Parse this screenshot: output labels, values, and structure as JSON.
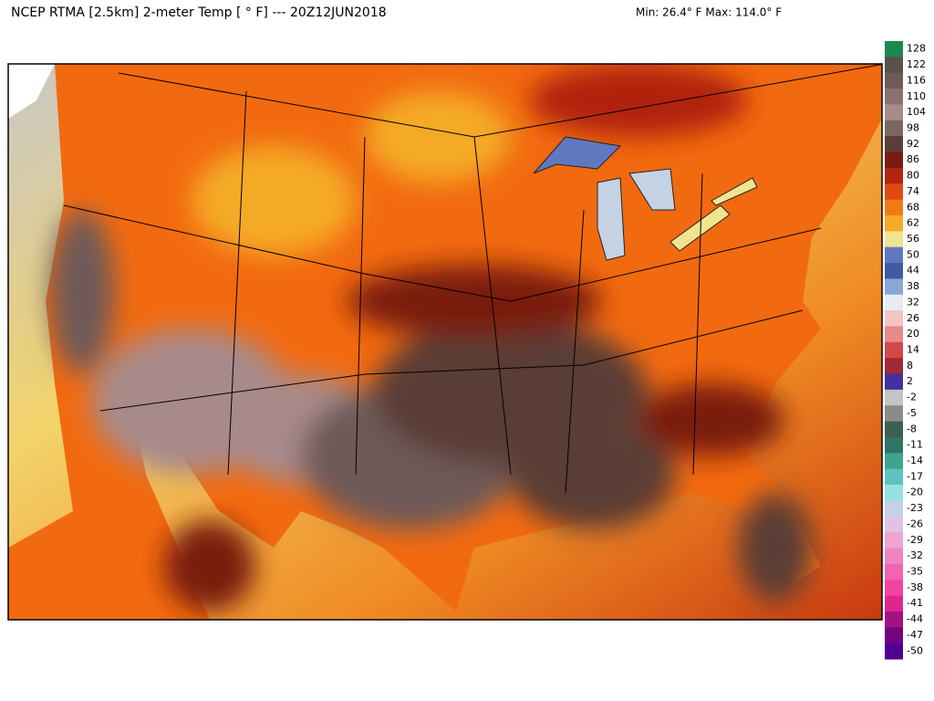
{
  "header": {
    "title": "NCEP RTMA [2.5km] 2-meter Temp [ ° F]  --- 20Z12JUN2018",
    "range": "Min: 26.4° F Max: 114.0° F"
  },
  "colorbar": {
    "labels": [
      128,
      122,
      116,
      110,
      104,
      98,
      92,
      86,
      80,
      74,
      68,
      62,
      56,
      50,
      44,
      38,
      32,
      26,
      20,
      14,
      8,
      2,
      -2,
      -5,
      -8,
      -11,
      -14,
      -17,
      -20,
      -23,
      -26,
      -29,
      -32,
      -35,
      -38,
      -41,
      -44,
      -47,
      -50
    ],
    "colors": [
      "#1a8a50",
      "#5a5050",
      "#6e5a58",
      "#8c7070",
      "#a88a8a",
      "#7a6860",
      "#5a3e34",
      "#7a1c10",
      "#b02410",
      "#e04a10",
      "#f07a14",
      "#f5aa28",
      "#f0e490",
      "#6078c0",
      "#3f5aa0",
      "#8aa6d6",
      "#e6ecf2",
      "#f2c4c4",
      "#e68a8a",
      "#d24848",
      "#a02838",
      "#44309e",
      "#c4c4c4",
      "#8a8a8a",
      "#3c6050",
      "#2f7464",
      "#3ea490",
      "#5ec2c4",
      "#96e0e4",
      "#c4d2e4",
      "#e2c2e2",
      "#f0a4d2",
      "#f084c2",
      "#f064b2",
      "#f044a2",
      "#e02490",
      "#a41282",
      "#720482",
      "#520094"
    ]
  }
}
